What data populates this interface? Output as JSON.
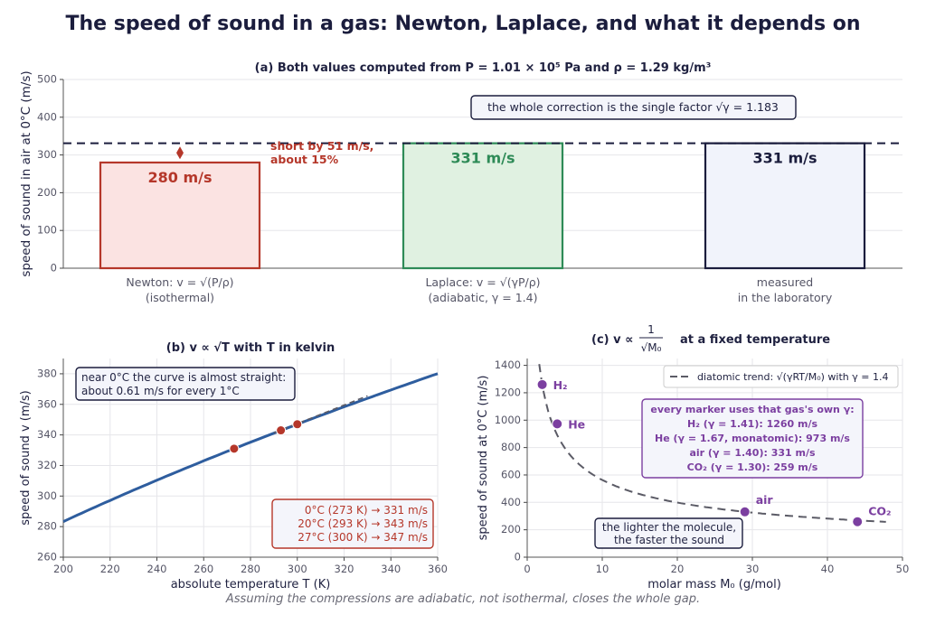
{
  "title": "The speed of sound in a gas: Newton, Laplace, and what it depends on",
  "footnote": "Assuming the compressions are adiabatic, not isothermal, closes the whole gap.",
  "colors": {
    "newton": "#b5372a",
    "laplace": "#2e8b57",
    "measured": "#1b1d3d",
    "curve": "#2e5d9e",
    "gas": "#7b3fa0",
    "trend": "#5b5b66",
    "grid": "#e6e6ea",
    "text": "#1f2140",
    "muted": "#555566"
  },
  "chart_data": [
    {
      "type": "bar",
      "title": "(a)  Both values computed from  P = 1.01 × 10⁵ Pa  and  ρ = 1.29 kg/m³",
      "ylabel": "speed of sound in air at 0°C  (m/s)",
      "ylim": [
        0,
        500
      ],
      "yticks": [
        "0",
        "100",
        "200",
        "300",
        "400",
        "500"
      ],
      "grid": true,
      "categories": [
        {
          "line1": "Newton:  v = √(P/ρ)",
          "line2": "(isothermal)"
        },
        {
          "line1": "Laplace:  v = √(γP/ρ)",
          "line2": "(adiabatic, γ = 1.4)"
        },
        {
          "line1": "measured",
          "line2": "in the laboratory"
        }
      ],
      "values": [
        280,
        331,
        331
      ],
      "bar_labels": [
        "280 m/s",
        "331 m/s",
        "331 m/s"
      ],
      "reference_line": 331,
      "gap_annotation": [
        "short by 51 m/s,",
        "about 15%"
      ],
      "gap_marker": {
        "from": 280,
        "to": 331
      },
      "callout": "the whole correction is the single factor  √γ = 1.183"
    },
    {
      "type": "line",
      "title": "(b)  v ∝ √T   with  T  in kelvin",
      "xlabel": "absolute temperature  T  (K)",
      "ylabel": "speed of sound  v  (m/s)",
      "xlim": [
        200,
        360
      ],
      "ylim": [
        260,
        390
      ],
      "xticks": [
        "200",
        "220",
        "240",
        "260",
        "280",
        "300",
        "320",
        "340",
        "360"
      ],
      "yticks": [
        "260",
        "280",
        "300",
        "320",
        "340",
        "360",
        "380"
      ],
      "grid": true,
      "curve": {
        "formula": "331*sqrt(T/273)",
        "x_range": [
          200,
          360
        ]
      },
      "tangent": {
        "x_range": [
          290,
          330
        ]
      },
      "points": [
        {
          "x": 273,
          "y": 331
        },
        {
          "x": 293,
          "y": 343
        },
        {
          "x": 300,
          "y": 347
        }
      ],
      "callout": [
        "near 0°C the curve is almost straight:",
        "about 0.61 m/s for every 1°C"
      ],
      "table": [
        "0°C  (273 K)  →  331 m/s",
        "20°C  (293 K)  →  343 m/s",
        "27°C  (300 K)  →  347 m/s"
      ]
    },
    {
      "type": "scatter",
      "title_prefix": "(c)  v ∝",
      "title_fraction": {
        "numerator": "1",
        "denominator": "√M₀"
      },
      "title_suffix": "at a fixed temperature",
      "xlabel": "molar mass  M₀  (g/mol)",
      "ylabel": "speed of sound at 0°C  (m/s)",
      "xlim": [
        0,
        50
      ],
      "ylim": [
        0,
        1450
      ],
      "xticks": [
        "0",
        "10",
        "20",
        "30",
        "40",
        "50"
      ],
      "yticks": [
        "0",
        "200",
        "400",
        "600",
        "800",
        "1000",
        "1200",
        "1400"
      ],
      "grid": true,
      "legend": {
        "position": "top-right",
        "entry": "diatomic trend:  √(γRT/M₀)  with  γ = 1.4"
      },
      "trend": {
        "gamma": 1.4,
        "T": 273,
        "R": 8.314,
        "x_range": [
          1.6,
          48
        ]
      },
      "points": [
        {
          "label": "H₂",
          "x": 2.0,
          "y": 1260
        },
        {
          "label": "He",
          "x": 4.0,
          "y": 973
        },
        {
          "label": "air",
          "x": 29.0,
          "y": 331
        },
        {
          "label": "CO₂",
          "x": 44.0,
          "y": 259
        }
      ],
      "info_box": [
        "every marker uses that gas's own γ:",
        "H₂  (γ = 1.41):   1260 m/s",
        "He  (γ = 1.67, monatomic):   973 m/s",
        "air  (γ = 1.40):   331 m/s",
        "CO₂  (γ = 1.30):   259 m/s"
      ],
      "callout": [
        "the lighter the molecule,",
        "the faster the sound"
      ]
    }
  ]
}
